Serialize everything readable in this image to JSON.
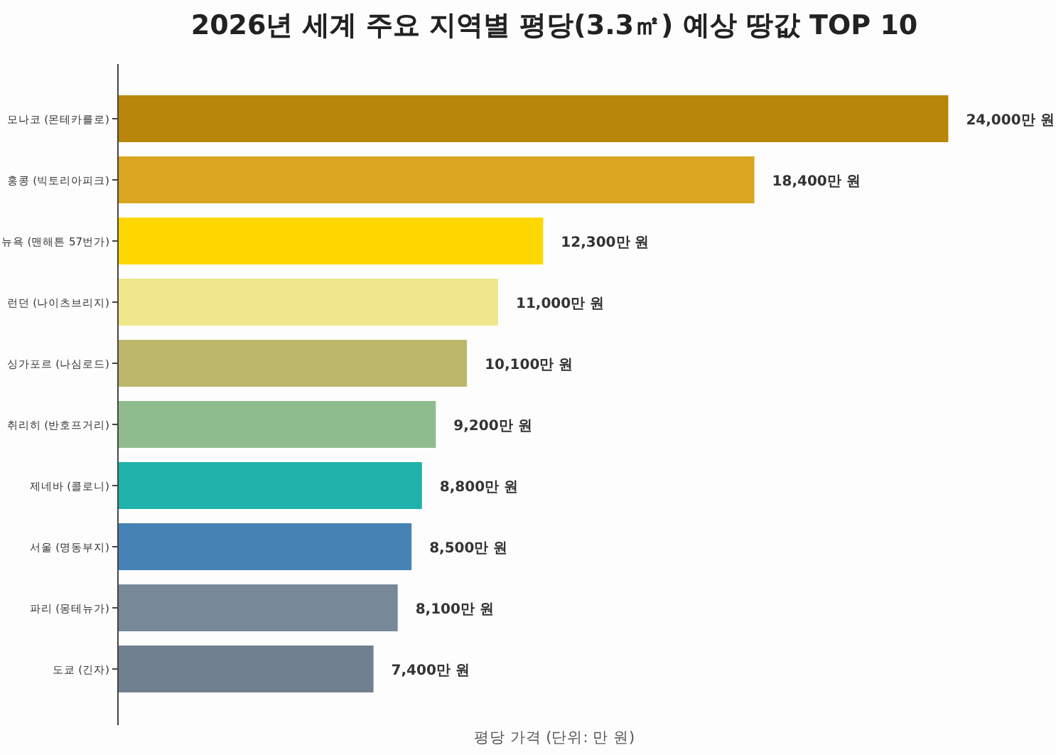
{
  "chart_data": {
    "type": "bar",
    "orientation": "horizontal",
    "title": "2026년 세계 주요 지역별 평당(3.3㎡) 예상 땅값 TOP 10",
    "xlabel": "평당 가격 (단위: 만 원)",
    "categories": [
      "모나코 (몬테카를로)",
      "홍콩 (빅토리아피크)",
      "뉴욕 (맨해튼 57번가)",
      "런던 (나이츠브리지)",
      "싱가포르 (나심로드)",
      "취리히 (반호프거리)",
      "제네바 (콜로니)",
      "서울 (명동부지)",
      "파리 (몽테뉴가)",
      "도쿄 (긴자)"
    ],
    "values": [
      24000,
      18400,
      12300,
      11000,
      10100,
      9200,
      8800,
      8500,
      8100,
      7400
    ],
    "value_labels": [
      "24,000만 원",
      "18,400만 원",
      "12,300만 원",
      "11,000만 원",
      "10,100만 원",
      "9,200만 원",
      "8,800만 원",
      "8,500만 원",
      "8,100만 원",
      "7,400만 원"
    ],
    "colors": [
      "#b8860b",
      "#daa520",
      "#ffd700",
      "#f0e68c",
      "#bdb76b",
      "#8fbc8f",
      "#20b2aa",
      "#4682b4",
      "#778899",
      "#708090"
    ]
  }
}
